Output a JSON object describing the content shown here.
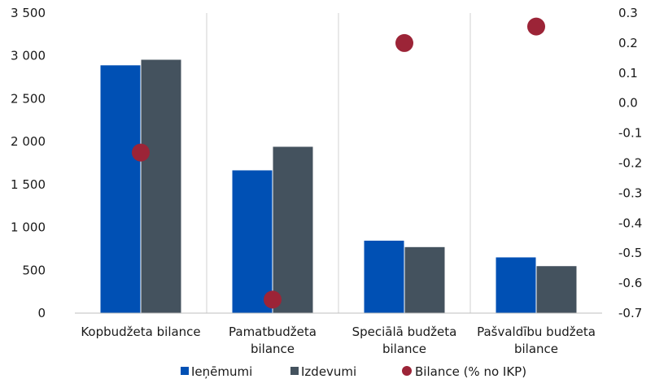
{
  "chart_data": {
    "type": "bar",
    "categories": [
      [
        "Kopbudžeta bilance"
      ],
      [
        "Pamatbudžeta",
        "bilance"
      ],
      [
        "Speciālā budžeta",
        "bilance"
      ],
      [
        "Pašvaldību budžeta",
        "bilance"
      ]
    ],
    "series": [
      {
        "name": "Ieņēmumi",
        "type": "bar",
        "axis": "left",
        "color": "#0050b4",
        "values": [
          2890,
          1665,
          845,
          650
        ]
      },
      {
        "name": "Izdevumi",
        "type": "bar",
        "axis": "left",
        "color": "#44525e",
        "values": [
          2955,
          1940,
          770,
          548
        ]
      },
      {
        "name": "Bilance (% no IKP)",
        "type": "scatter",
        "axis": "right",
        "color": "#9c2437",
        "values": [
          -0.165,
          -0.655,
          0.2,
          0.255
        ]
      }
    ],
    "y_left": {
      "range": [
        0,
        3500
      ],
      "ticks": [
        0,
        500,
        1000,
        1500,
        2000,
        2500,
        3000,
        3500
      ],
      "tick_labels": [
        "0",
        "500",
        "1 000",
        "1 500",
        "2 000",
        "2 500",
        "3 000",
        "3 500"
      ]
    },
    "y_right": {
      "range": [
        -0.7,
        0.3
      ],
      "ticks": [
        -0.7,
        -0.6,
        -0.5,
        -0.4,
        -0.3,
        -0.2,
        -0.1,
        0.0,
        0.1,
        0.2,
        0.3
      ],
      "tick_labels": [
        "-0.7",
        "-0.6",
        "-0.5",
        "-0.4",
        "-0.3",
        "-0.2",
        "-0.1",
        "0.0",
        "0.1",
        "0.2",
        "0.3"
      ]
    },
    "grid": "vertical category separators",
    "legend": "bottom-center"
  }
}
